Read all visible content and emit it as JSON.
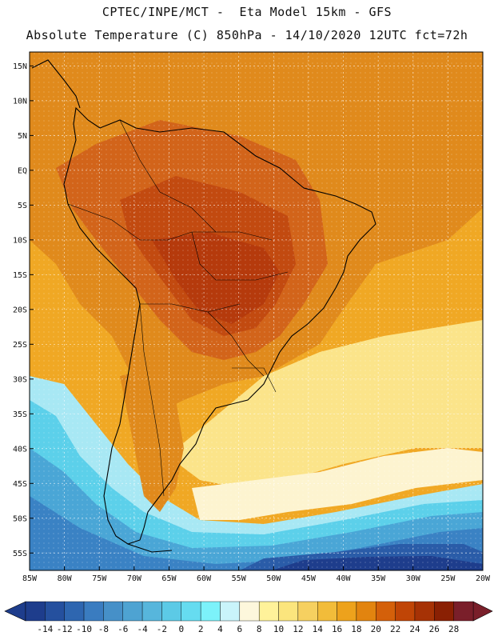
{
  "header": {
    "line1": "CPTEC/INPE/MCT -  Eta Model 15km - GFS",
    "line2": "Absolute Temperature (C) 850hPa - 14/10/2020 12UTC fct=72h"
  },
  "map": {
    "latitude_labels": [
      "15N",
      "10N",
      "5N",
      "EQ",
      "5S",
      "10S",
      "15S",
      "20S",
      "25S",
      "30S",
      "35S",
      "40S",
      "45S",
      "50S",
      "55S"
    ],
    "longitude_labels": [
      "85W",
      "80W",
      "75W",
      "70W",
      "65W",
      "60W",
      "55W",
      "50W",
      "45W",
      "40W",
      "35W",
      "30W",
      "25W",
      "20W"
    ],
    "lon_range": [
      -85,
      -20
    ],
    "lat_range": [
      -57.5,
      17
    ]
  },
  "colorbar": {
    "labels": [
      "-14",
      "-12",
      "-10",
      "-8",
      "-6",
      "-4",
      "-2",
      "0",
      "2",
      "4",
      "6",
      "8",
      "10",
      "12",
      "14",
      "16",
      "18",
      "20",
      "22",
      "24",
      "26",
      "28"
    ],
    "colors": [
      "#1e3d8c",
      "#25509e",
      "#2e66b0",
      "#3a7cc0",
      "#4690c8",
      "#4ea3d2",
      "#57b6dc",
      "#5ccae6",
      "#66dcf0",
      "#7cf2fa",
      "#c9f4fa",
      "#fdf7dc",
      "#fff29a",
      "#fbe57d",
      "#f6d060",
      "#f2bc3a",
      "#eda21c",
      "#e2840f",
      "#d4600a",
      "#c04506",
      "#a63205",
      "#8a2003",
      "#7a1f2a"
    ],
    "low_color": "#1e3d8c",
    "high_color": "#7a1f2a"
  },
  "palette": {
    "warm": "#f0a824",
    "hot": "#e08a1c",
    "hotter": "#d2641a",
    "hottest": "#c24a10",
    "land_hot": "#b53a0c",
    "pale_yellow": "#fbe48a",
    "cream": "#fdf4d0",
    "light_cyan": "#a8e8f4",
    "cyan": "#5cd0ea",
    "light_blue": "#4aa6d6",
    "blue": "#3a82c4",
    "deep_blue": "#2a5ca8",
    "navy": "#1e3d8c"
  }
}
